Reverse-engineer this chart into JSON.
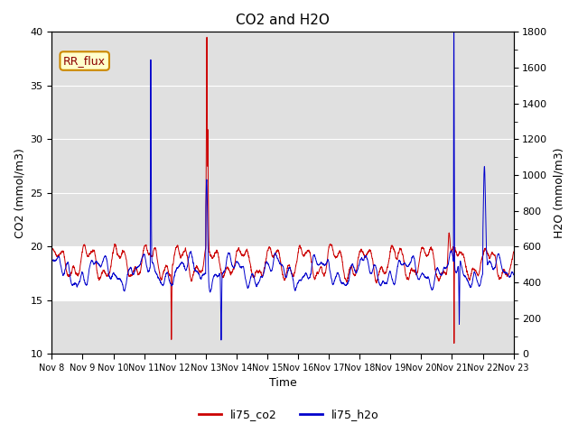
{
  "title": "CO2 and H2O",
  "xlabel": "Time",
  "ylabel_left": "CO2 (mmol/m3)",
  "ylabel_right": "H2O (mmol/m3)",
  "ylim_left": [
    10,
    40
  ],
  "ylim_right": [
    0,
    1800
  ],
  "xtick_labels": [
    "Nov 8",
    "Nov 9",
    "Nov 10",
    "Nov 11",
    "Nov 12",
    "Nov 13",
    "Nov 14",
    "Nov 15",
    "Nov 16",
    "Nov 17",
    "Nov 18",
    "Nov 19",
    "Nov 20",
    "Nov 21",
    "Nov 22",
    "Nov 23"
  ],
  "yticks_left": [
    10,
    15,
    20,
    25,
    30,
    35,
    40
  ],
  "yticks_right": [
    0,
    200,
    400,
    600,
    800,
    1000,
    1200,
    1400,
    1600,
    1800
  ],
  "legend_label_co2": "li75_co2",
  "legend_label_h2o": "li75_h2o",
  "annotation_text": "RR_flux",
  "co2_color": "#cc0000",
  "h2o_color": "#0000cc",
  "bg_color": "#e0e0e0",
  "annotation_bg": "#ffffcc",
  "annotation_border": "#cc8800",
  "hspan_lower": 15,
  "hspan_upper": 20
}
